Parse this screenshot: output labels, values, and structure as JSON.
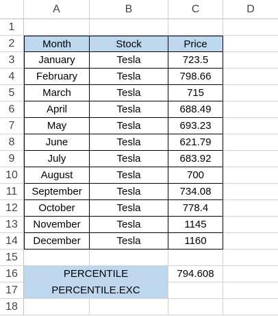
{
  "columns": [
    "A",
    "B",
    "C",
    "D"
  ],
  "row_numbers": [
    "1",
    "2",
    "3",
    "4",
    "5",
    "6",
    "7",
    "8",
    "9",
    "10",
    "11",
    "12",
    "13",
    "14",
    "15",
    "16",
    "17",
    "18"
  ],
  "table": {
    "headers": [
      "Month",
      "Stock",
      "Price"
    ],
    "rows": [
      [
        "January",
        "Tesla",
        "723.5"
      ],
      [
        "February",
        "Tesla",
        "798.66"
      ],
      [
        "March",
        "Tesla",
        "715"
      ],
      [
        "April",
        "Tesla",
        "688.49"
      ],
      [
        "May",
        "Tesla",
        "693.23"
      ],
      [
        "June",
        "Tesla",
        "621.79"
      ],
      [
        "July",
        "Tesla",
        "683.92"
      ],
      [
        "August",
        "Tesla",
        "700"
      ],
      [
        "September",
        "Tesla",
        "734.08"
      ],
      [
        "October",
        "Tesla",
        "778.4"
      ],
      [
        "November",
        "Tesla",
        "1145"
      ],
      [
        "December",
        "Tesla",
        "1160"
      ]
    ]
  },
  "formula_labels": [
    "PERCENTILE",
    "PERCENTILE.EXC"
  ],
  "result": "794.608",
  "colors": {
    "header_fill": "#bdd7ee",
    "gridline": "#d4d4d4"
  }
}
